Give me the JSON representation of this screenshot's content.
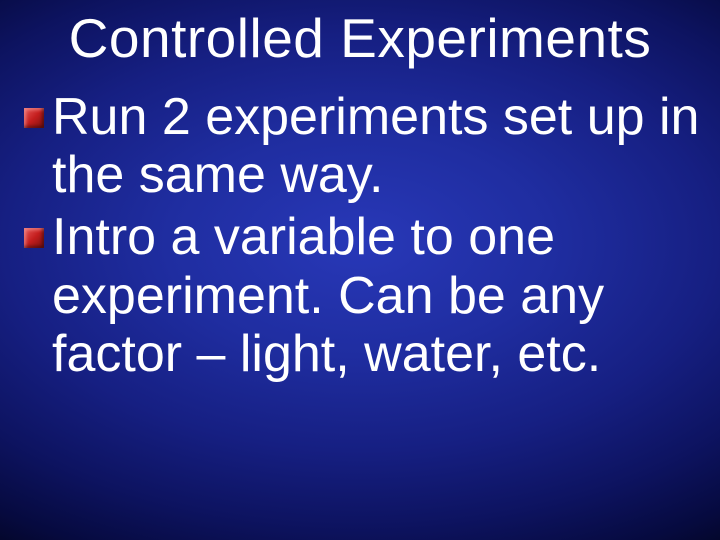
{
  "slide": {
    "title": "Controlled Experiments",
    "bullets": [
      {
        "text": "Run 2 experiments set up in the same way."
      },
      {
        "text": "Intro a variable to one experiment.  Can be any factor – light, water, etc."
      }
    ],
    "background_gradient": {
      "type": "radial",
      "center_color": "#2838b8",
      "edge_color": "#030522"
    },
    "title_fontsize": 55,
    "body_fontsize": 52,
    "text_color": "#ffffff",
    "bullet_color": "#c41e1e",
    "font_family": "Arial"
  }
}
